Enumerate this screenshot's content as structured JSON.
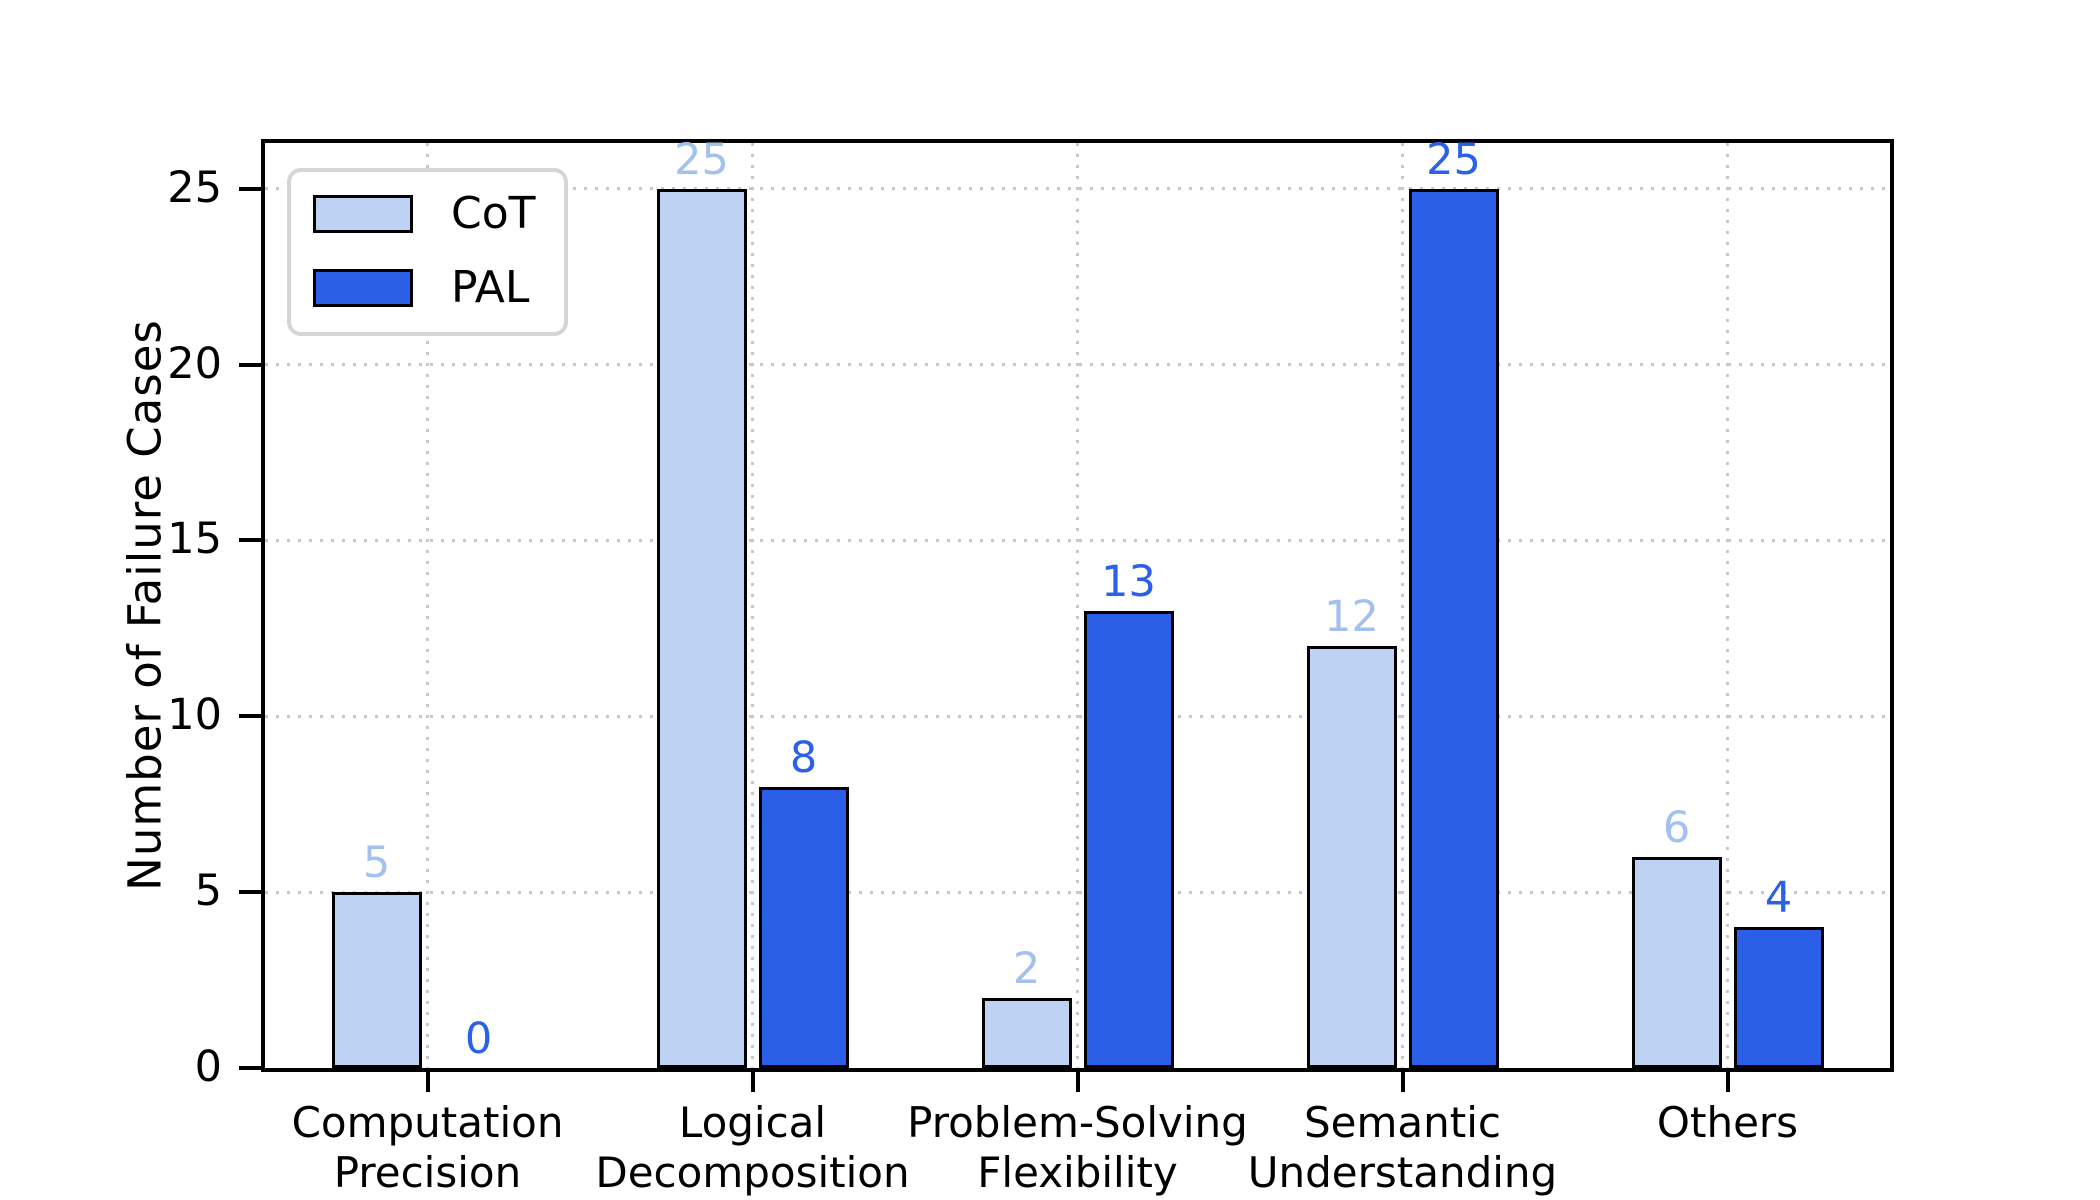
{
  "chart_data": {
    "type": "bar",
    "title": "",
    "categories": [
      {
        "lines": [
          "Computation",
          "Precision"
        ]
      },
      {
        "lines": [
          "Logical",
          "Decomposition"
        ]
      },
      {
        "lines": [
          "Problem-Solving",
          "Flexibility"
        ]
      },
      {
        "lines": [
          "Semantic",
          "Understanding"
        ]
      },
      {
        "lines": [
          "Others"
        ]
      }
    ],
    "series": [
      {
        "name": "CoT",
        "values": [
          5,
          25,
          2,
          12,
          6
        ],
        "fill": "#bed3f3",
        "label_color": "#a3c1ef"
      },
      {
        "name": "PAL",
        "values": [
          0,
          8,
          13,
          25,
          4
        ],
        "fill": "#2b5fe8",
        "label_color": "#2b61e8"
      }
    ],
    "ylabel": "Number of Failure Cases",
    "yticks": [
      0,
      5,
      10,
      15,
      20,
      25
    ],
    "ylim": [
      0,
      26.3
    ],
    "bar_edge_color": "#000000",
    "grid": {
      "style": "dotted",
      "color": "#c8c8c8",
      "horizontal": true,
      "vertical": true
    },
    "legend": {
      "position": "upper left"
    }
  }
}
